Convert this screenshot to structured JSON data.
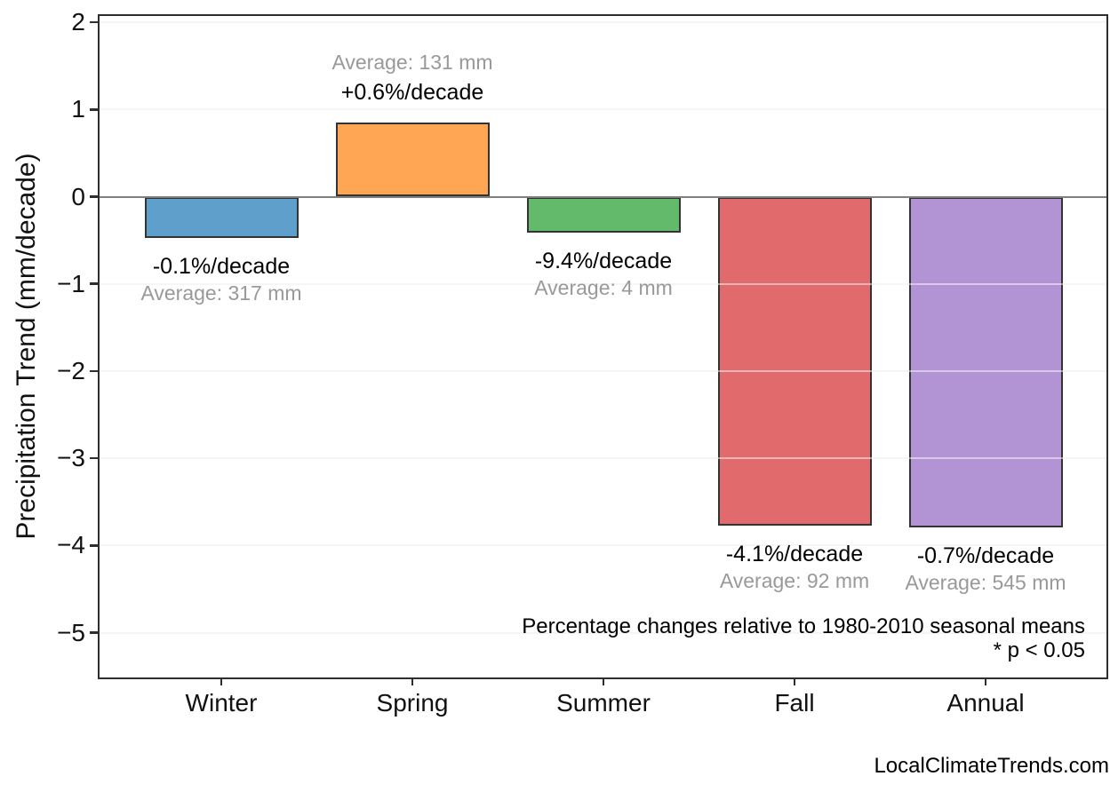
{
  "page": {
    "background": "#ffffff"
  },
  "chart_data": {
    "type": "bar",
    "title": "",
    "xlabel": "",
    "ylabel": "Precipitation Trend (mm/decade)",
    "categories": [
      "Winter",
      "Spring",
      "Summer",
      "Fall",
      "Annual"
    ],
    "values": [
      -0.47,
      0.85,
      -0.41,
      -3.77,
      -3.79
    ],
    "units": "mm/decade",
    "bar_colors": [
      "#5E9FCB",
      "#FFA654",
      "#63BA6B",
      "#E16A6C",
      "#B293D3"
    ],
    "bar_edge_color": "#333333",
    "percent_labels": [
      "-0.1%/decade",
      "+0.6%/decade",
      "-9.4%/decade",
      "-4.1%/decade",
      "-0.7%/decade"
    ],
    "average_labels": [
      "Average: 317 mm",
      "Average: 131 mm",
      "Average: 4 mm",
      "Average: 92 mm",
      "Average: 545 mm"
    ],
    "yticks": [
      "2",
      "1",
      "0",
      "−1",
      "−2",
      "−3",
      "−4",
      "−5"
    ],
    "ytick_values": [
      2,
      1,
      0,
      -1,
      -2,
      -3,
      -4,
      -5
    ],
    "ylim": [
      -5.5,
      2.1
    ],
    "grid": true,
    "grid_color": "#ebebeb",
    "zero_line_color": "#7f7f7f",
    "annotation_color": "#000000",
    "average_label_color": "#999999",
    "annotations": [
      "Percentage changes relative to 1980-2010 seasonal means",
      "* p < 0.05"
    ],
    "watermark": "LocalClimateTrends.com"
  }
}
